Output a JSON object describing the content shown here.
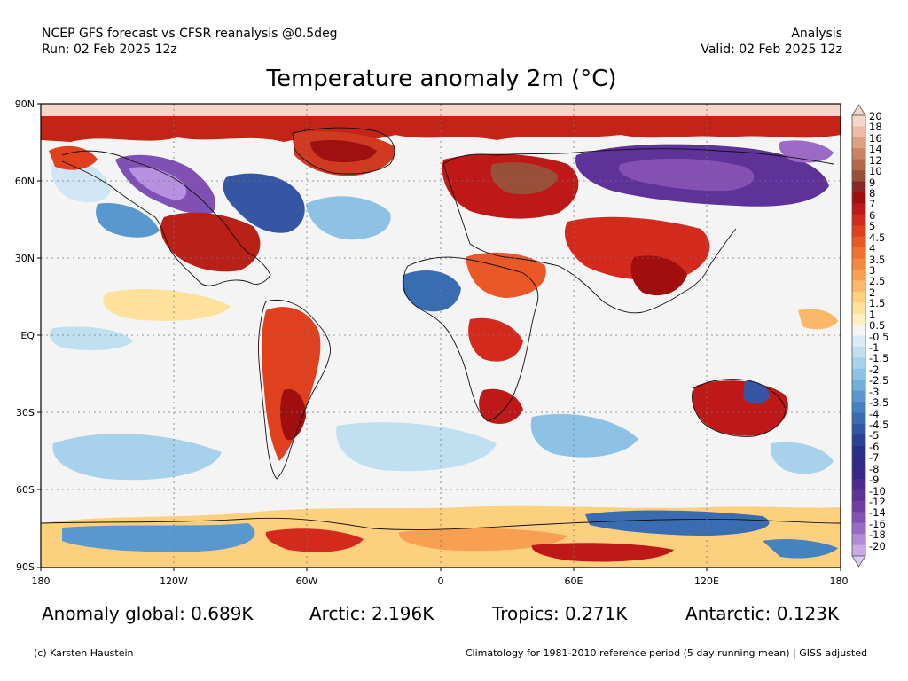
{
  "header": {
    "left_line1": "NCEP GFS forecast vs CFSR reanalysis @0.5deg",
    "left_line2": "Run: 02 Feb 2025 12z",
    "right_line1": "Analysis",
    "right_line2": "Valid: 02 Feb 2025 12z"
  },
  "title": "Temperature anomaly 2m (°C)",
  "axes": {
    "lat_labels": [
      "90N",
      "60N",
      "30N",
      "EQ",
      "30S",
      "60S",
      "90S"
    ],
    "lon_labels": [
      "180",
      "120W",
      "60W",
      "0",
      "60E",
      "120E",
      "180"
    ]
  },
  "colorbar": {
    "labels": [
      "20",
      "18",
      "16",
      "14",
      "12",
      "10",
      "9",
      "8",
      "7",
      "6",
      "5",
      "4.5",
      "4",
      "3.5",
      "3",
      "2.5",
      "2",
      "1.5",
      "1",
      "0.5",
      "-0.5",
      "-1",
      "-1.5",
      "-2",
      "-2.5",
      "-3",
      "-3.5",
      "-4",
      "-4.5",
      "-5",
      "-6",
      "-7",
      "-8",
      "-9",
      "-10",
      "-12",
      "-14",
      "-16",
      "-18",
      "-20"
    ],
    "colors": [
      "#f5d6c8",
      "#ecbca6",
      "#dca084",
      "#c88464",
      "#b06848",
      "#985038",
      "#882828",
      "#a00e0e",
      "#be1818",
      "#d42a1e",
      "#e0401e",
      "#ea5828",
      "#f07030",
      "#f4883e",
      "#f8a052",
      "#fbb868",
      "#fdd080",
      "#fee29c",
      "#fff0c0",
      "#f4f4f4",
      "#d8ecf6",
      "#c0e0f2",
      "#a8d2ec",
      "#8ec2e4",
      "#72aeda",
      "#5898ce",
      "#4482c0",
      "#3a6cb2",
      "#3456a4",
      "#2c4096",
      "#28308a",
      "#302a88",
      "#3a2888",
      "#4c2a90",
      "#5e3298",
      "#703ca4",
      "#8450b4",
      "#9a6ac4",
      "#b28ad6",
      "#caaae6"
    ],
    "top_arrow_color": "#f5d6c8",
    "bottom_arrow_color": "#dcc8f4"
  },
  "stats": {
    "global": "Anomaly global: 0.689K",
    "arctic": "Arctic: 2.196K",
    "tropics": "Tropics: 0.271K",
    "antarctic": "Antarctic: 0.123K"
  },
  "footer": {
    "left": "(c) Karsten Haustein",
    "right": "Climatology for 1981-2010 reference period (5 day running mean) | GISS adjusted"
  }
}
